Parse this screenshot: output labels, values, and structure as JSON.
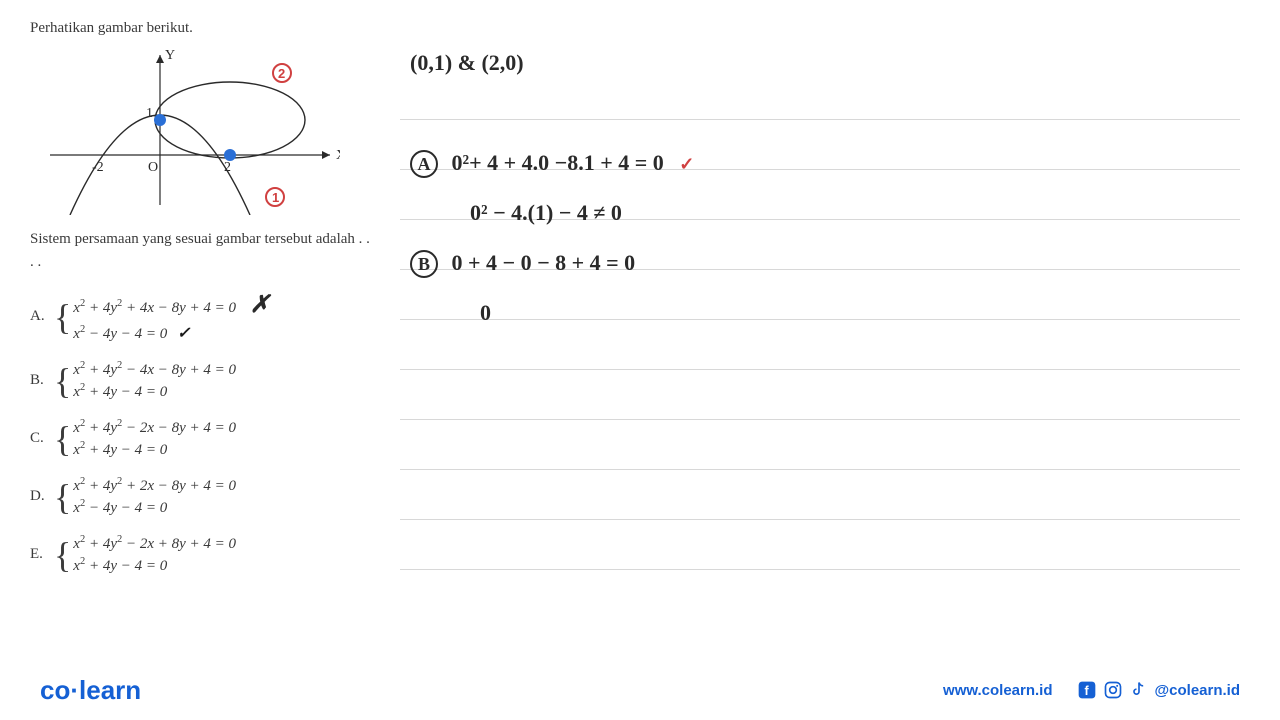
{
  "intro": "Perhatikan gambar berikut.",
  "question": "Sistem persamaan yang sesuai gambar tersebut adalah . . . .",
  "graph": {
    "axis_x_label": "X",
    "axis_y_label": "Y",
    "x_ticks": [
      "-2",
      "O",
      "2"
    ],
    "y_tick": "1",
    "ellipse_color": "#3a3a3a",
    "parabola_color": "#3a3a3a",
    "point_color": "#2a6fd6",
    "annotation_1": "1",
    "annotation_2": "2",
    "annotation_color": "#d04040"
  },
  "options": [
    {
      "letter": "A.",
      "eq1_html": "x<sup>2</sup> + 4y<sup>2</sup> + 4x − 8y + 4 = 0",
      "eq2_html": "x<sup>2</sup> − 4y − 4 = 0",
      "mark1": "✗",
      "mark2": "✓"
    },
    {
      "letter": "B.",
      "eq1_html": "x<sup>2</sup> + 4y<sup>2</sup> − 4x − 8y + 4 = 0",
      "eq2_html": "x<sup>2</sup> + 4y − 4 = 0"
    },
    {
      "letter": "C.",
      "eq1_html": "x<sup>2</sup> + 4y<sup>2</sup> − 2x − 8y + 4 = 0",
      "eq2_html": "x<sup>2</sup> + 4y − 4 = 0"
    },
    {
      "letter": "D.",
      "eq1_html": "x<sup>2</sup> + 4y<sup>2</sup> + 2x − 8y + 4 = 0",
      "eq2_html": "x<sup>2</sup> − 4y − 4 = 0"
    },
    {
      "letter": "E.",
      "eq1_html": "x<sup>2</sup> + 4y<sup>2</sup> − 2x + 8y + 4 = 0",
      "eq2_html": "x<sup>2</sup> + 4y − 4 = 0"
    }
  ],
  "handwriting": {
    "points": "(0,1)  &  (2,0)",
    "lineA1": "0²+ 4 + 4.0 −8.1 + 4  = 0",
    "lineA2": "0² − 4.(1) − 4  ≠ 0",
    "lineB1": "0 + 4 − 0 − 8 + 4  = 0",
    "lineB2": "0",
    "check": "✓"
  },
  "footer": {
    "logo_pre": "co",
    "logo_post": "learn",
    "url": "www.colearn.id",
    "handle": "@colearn.id"
  },
  "colors": {
    "primary_blue": "#1560d4",
    "red_accent": "#d04040",
    "text": "#3a3a3a",
    "handwriting": "#2a2a2a",
    "rule_line": "#d8d8d8",
    "point_blue": "#2a6fd6"
  }
}
